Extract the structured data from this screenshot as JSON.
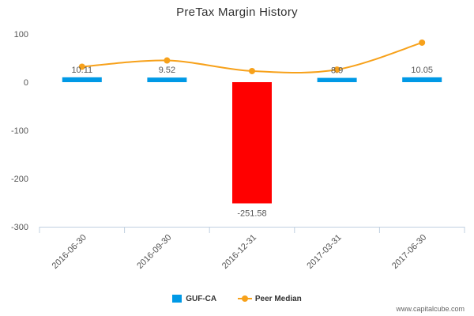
{
  "chart_data": {
    "type": "bar",
    "title": "PreTax Margin History",
    "categories": [
      "2016-06-30",
      "2016-09-30",
      "2016-12-31",
      "2017-03-31",
      "2017-06-30"
    ],
    "ylim": [
      -300,
      100
    ],
    "yticks": [
      100,
      0,
      -100,
      -200,
      -300
    ],
    "series": [
      {
        "name": "GUF-CA",
        "type": "bar",
        "values": [
          10.11,
          9.52,
          -251.58,
          8.9,
          10.05
        ],
        "labels": [
          "10.11",
          "9.52",
          "-251.58",
          "8.9",
          "10.05"
        ],
        "color": "#0099e6",
        "negative_color": "#ff0000"
      },
      {
        "name": "Peer Median",
        "type": "line",
        "values": [
          32,
          45,
          23,
          26,
          82
        ],
        "color": "#f7a11a"
      }
    ],
    "legend_position": "bottom-center",
    "grid": false
  },
  "watermark": "www.capitalcube.com"
}
